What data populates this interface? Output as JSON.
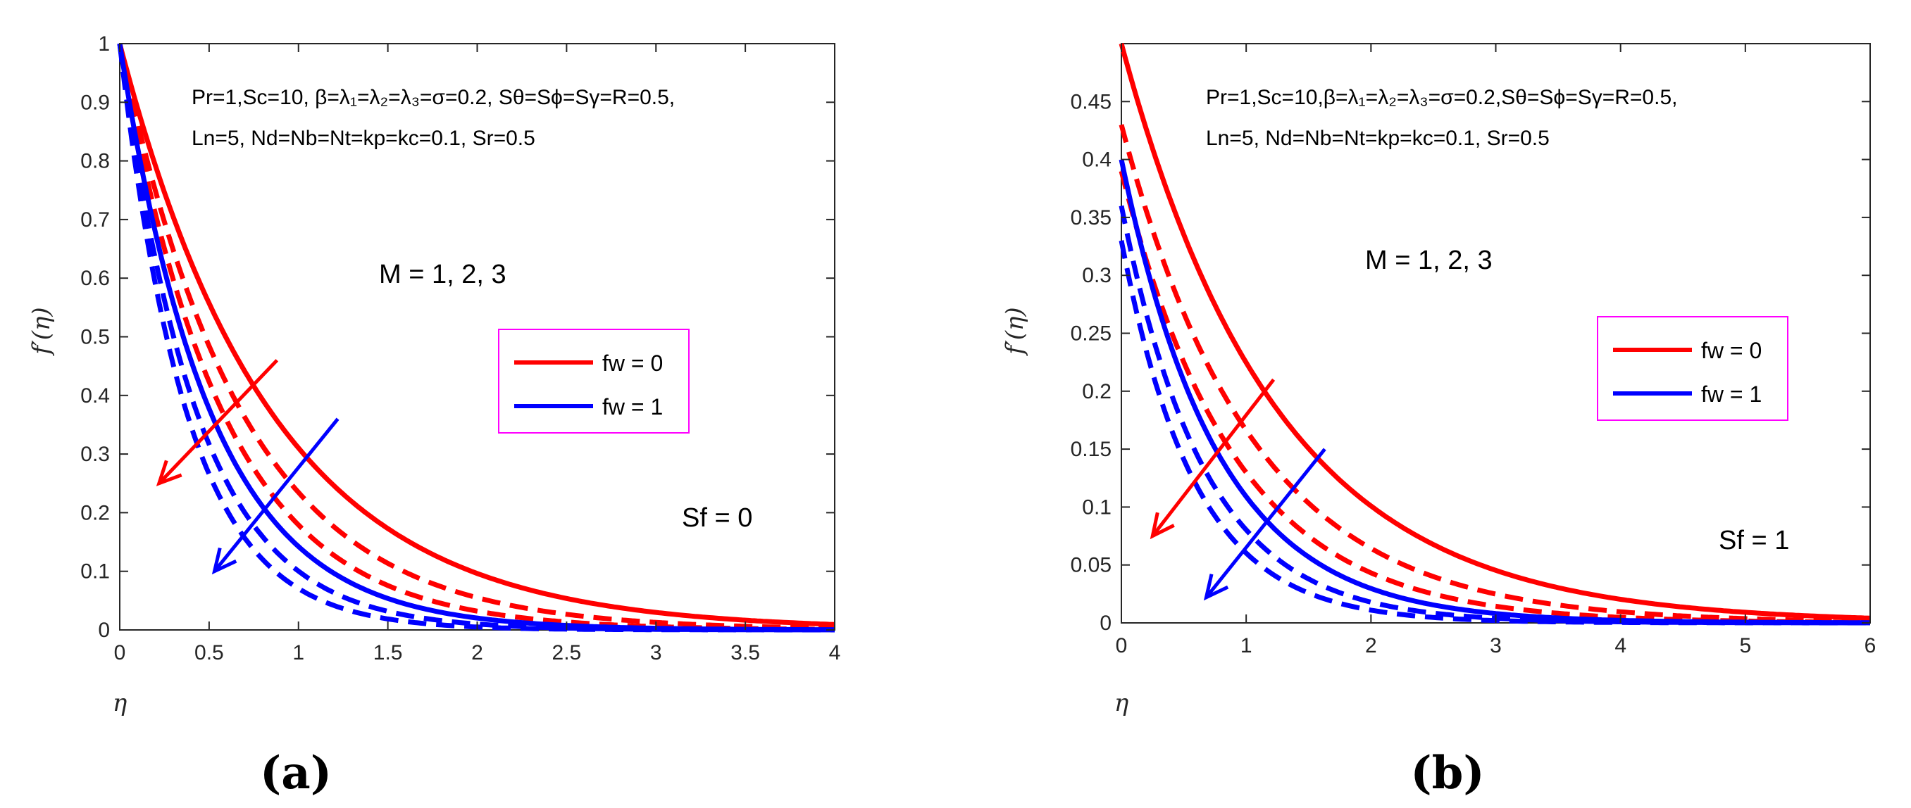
{
  "colors": {
    "red": "#ff0000",
    "blue": "#0000ff",
    "legend_border": "#ff00ff",
    "axis": "#262626"
  },
  "chart_data": [
    {
      "type": "line",
      "panel_label": "(a)",
      "xlabel": "η",
      "ylabel": "f′(η)",
      "xlim": [
        0,
        4
      ],
      "ylim": [
        0,
        1
      ],
      "xticks": [
        0,
        0.5,
        1,
        1.5,
        2,
        2.5,
        3,
        3.5,
        4
      ],
      "xtick_labels": [
        "0",
        "0.5",
        "1",
        "1.5",
        "2",
        "2.5",
        "3",
        "3.5",
        "4"
      ],
      "yticks": [
        0,
        0.1,
        0.2,
        0.3,
        0.4,
        0.5,
        0.6,
        0.7,
        0.8,
        0.9,
        1
      ],
      "ytick_labels": [
        "0",
        "0.1",
        "0.2",
        "0.3",
        "0.4",
        "0.5",
        "0.6",
        "0.7",
        "0.8",
        "0.9",
        "1"
      ],
      "annotation_params_line1": "Pr=1,Sc=10, β=λ₁=λ₂=λ₃=σ=0.2, Sθ=Sϕ=Sγ=R=0.5,",
      "annotation_params_line2": "Ln=5, Nd=Nb=Nt=kp=kc=0.1, Sr=0.5",
      "annotation_M": "M = 1, 2, 3",
      "annotation_S": "Sf = 0",
      "legend": [
        "fw = 0",
        "fw = 1"
      ],
      "series": [
        {
          "name": "fw = 0, M = 1",
          "color": "red",
          "dash": "solid",
          "f0": 1.0,
          "rate": 1.17
        },
        {
          "name": "fw = 0, M = 2",
          "color": "red",
          "dash": "dashed",
          "f0": 1.0,
          "rate": 1.45
        },
        {
          "name": "fw = 0, M = 3",
          "color": "red",
          "dash": "dashed",
          "f0": 1.0,
          "rate": 1.72
        },
        {
          "name": "fw = 1, M = 1",
          "color": "blue",
          "dash": "solid",
          "f0": 1.0,
          "rate": 1.95
        },
        {
          "name": "fw = 1, M = 2",
          "color": "blue",
          "dash": "dashed",
          "f0": 1.0,
          "rate": 2.3
        },
        {
          "name": "fw = 1, M = 3",
          "color": "blue",
          "dash": "dashed",
          "f0": 1.0,
          "rate": 2.65
        }
      ],
      "arrows": [
        {
          "color": "red",
          "from": [
            0.88,
            0.46
          ],
          "to": [
            0.22,
            0.25
          ]
        },
        {
          "color": "blue",
          "from": [
            1.22,
            0.36
          ],
          "to": [
            0.53,
            0.1
          ]
        }
      ]
    },
    {
      "type": "line",
      "panel_label": "(b)",
      "xlabel": "η",
      "ylabel": "f′(η)",
      "xlim": [
        0,
        6
      ],
      "ylim": [
        0,
        0.5
      ],
      "xticks": [
        0,
        1,
        2,
        3,
        4,
        5,
        6
      ],
      "xtick_labels": [
        "0",
        "1",
        "2",
        "3",
        "4",
        "5",
        "6"
      ],
      "yticks": [
        0,
        0.05,
        0.1,
        0.15,
        0.2,
        0.25,
        0.3,
        0.35,
        0.4,
        0.45
      ],
      "ytick_labels": [
        "0",
        "0.05",
        "0.1",
        "0.15",
        "0.2",
        "0.25",
        "0.3",
        "0.35",
        "0.4",
        "0.45"
      ],
      "annotation_params_line1": "Pr=1,Sc=10,β=λ₁=λ₂=λ₃=σ=0.2,Sθ=Sϕ=Sγ=R=0.5,",
      "annotation_params_line2": "Ln=5, Nd=Nb=Nt=kp=kc=0.1, Sr=0.5",
      "annotation_M": "M = 1, 2, 3",
      "annotation_S": "Sf = 1",
      "legend": [
        "fw = 0",
        "fw = 1"
      ],
      "series": [
        {
          "name": "fw = 0, M = 1",
          "color": "red",
          "dash": "solid",
          "f0": 0.5,
          "rate": 0.8
        },
        {
          "name": "fw = 0, M = 2",
          "color": "red",
          "dash": "dashed",
          "f0": 0.43,
          "rate": 0.95
        },
        {
          "name": "fw = 0, M = 3",
          "color": "red",
          "dash": "dashed",
          "f0": 0.39,
          "rate": 1.1
        },
        {
          "name": "fw = 1, M = 1",
          "color": "blue",
          "dash": "solid",
          "f0": 0.4,
          "rate": 1.3
        },
        {
          "name": "fw = 1, M = 2",
          "color": "blue",
          "dash": "dashed",
          "f0": 0.36,
          "rate": 1.5
        },
        {
          "name": "fw = 1, M = 3",
          "color": "blue",
          "dash": "dashed",
          "f0": 0.33,
          "rate": 1.7
        }
      ],
      "arrows": [
        {
          "color": "red",
          "from": [
            1.22,
            0.21
          ],
          "to": [
            0.25,
            0.075
          ]
        },
        {
          "color": "blue",
          "from": [
            1.63,
            0.15
          ],
          "to": [
            0.68,
            0.022
          ]
        }
      ]
    }
  ]
}
